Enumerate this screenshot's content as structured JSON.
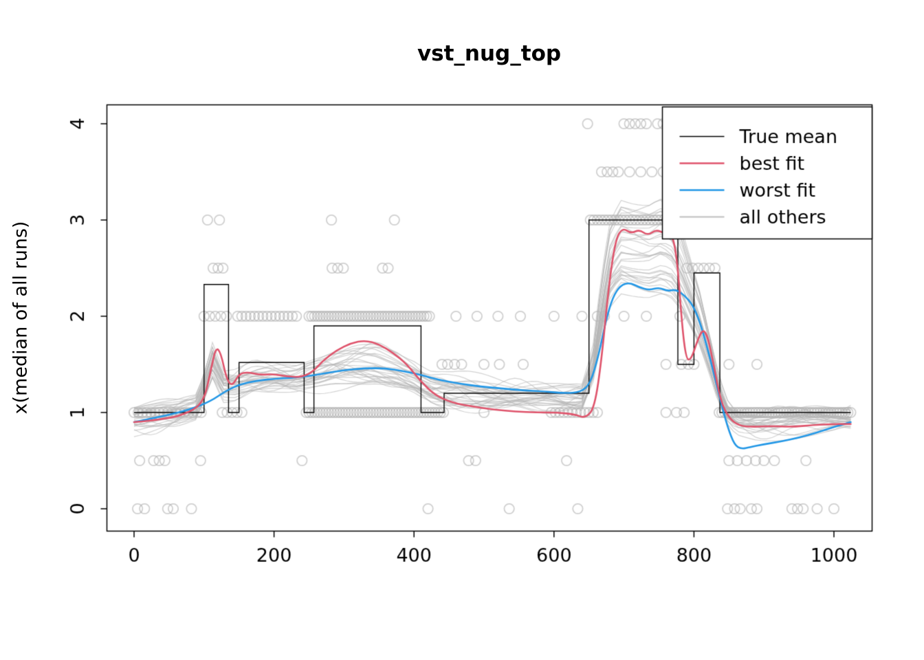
{
  "chart_data": {
    "type": "line",
    "title": "vst_nug_top",
    "xlabel": "",
    "ylabel": "x(median of all runs)",
    "xlim": [
      -40,
      1060
    ],
    "ylim": [
      -0.23,
      4.2
    ],
    "x_ticks": [
      0,
      200,
      400,
      600,
      800,
      1000
    ],
    "y_ticks": [
      0,
      1,
      2,
      3,
      4
    ],
    "grid": false,
    "colors": {
      "true_mean": "#000000",
      "best_fit": "#DF536B",
      "worst_fit": "#2297E6",
      "others": "#BEBEBE",
      "points": "#BEBEBE"
    },
    "legend": {
      "position": "top-right",
      "entries": [
        {
          "label": "True mean",
          "color": "#000000",
          "width": 1.5
        },
        {
          "label": "best fit",
          "color": "#DF536B",
          "width": 2.6
        },
        {
          "label": "worst fit",
          "color": "#2297E6",
          "width": 2.6
        },
        {
          "label": "all others",
          "color": "#BEBEBE",
          "width": 2.0
        }
      ]
    },
    "true_mean_steps": [
      [
        0,
        100,
        1
      ],
      [
        100,
        135,
        2.33
      ],
      [
        135,
        150,
        1
      ],
      [
        150,
        243,
        1.52
      ],
      [
        243,
        257,
        1
      ],
      [
        257,
        410,
        1.9
      ],
      [
        410,
        443,
        1
      ],
      [
        443,
        650,
        1.2
      ],
      [
        650,
        777,
        3
      ],
      [
        777,
        800,
        1.5
      ],
      [
        800,
        837,
        2.45
      ],
      [
        837,
        1024,
        1
      ]
    ],
    "best_fit": [
      [
        0,
        0.9
      ],
      [
        45,
        0.93
      ],
      [
        80,
        1.0
      ],
      [
        100,
        1.12
      ],
      [
        110,
        1.45
      ],
      [
        117,
        1.68
      ],
      [
        124,
        1.62
      ],
      [
        132,
        1.35
      ],
      [
        140,
        1.27
      ],
      [
        150,
        1.4
      ],
      [
        162,
        1.42
      ],
      [
        180,
        1.39
      ],
      [
        200,
        1.4
      ],
      [
        220,
        1.37
      ],
      [
        240,
        1.37
      ],
      [
        255,
        1.42
      ],
      [
        270,
        1.54
      ],
      [
        290,
        1.65
      ],
      [
        310,
        1.72
      ],
      [
        330,
        1.75
      ],
      [
        350,
        1.71
      ],
      [
        370,
        1.62
      ],
      [
        390,
        1.5
      ],
      [
        410,
        1.32
      ],
      [
        430,
        1.18
      ],
      [
        455,
        1.1
      ],
      [
        485,
        1.06
      ],
      [
        515,
        1.03
      ],
      [
        545,
        1.01
      ],
      [
        575,
        1.0
      ],
      [
        605,
        1.0
      ],
      [
        630,
        0.98
      ],
      [
        645,
        0.94
      ],
      [
        658,
        1.05
      ],
      [
        668,
        1.55
      ],
      [
        678,
        2.3
      ],
      [
        688,
        2.8
      ],
      [
        698,
        2.92
      ],
      [
        710,
        2.86
      ],
      [
        722,
        2.9
      ],
      [
        734,
        2.84
      ],
      [
        746,
        2.9
      ],
      [
        758,
        2.86
      ],
      [
        768,
        2.88
      ],
      [
        776,
        2.6
      ],
      [
        783,
        1.9
      ],
      [
        789,
        1.55
      ],
      [
        796,
        1.55
      ],
      [
        805,
        1.75
      ],
      [
        813,
        1.87
      ],
      [
        820,
        1.78
      ],
      [
        828,
        1.5
      ],
      [
        838,
        1.12
      ],
      [
        850,
        0.94
      ],
      [
        865,
        0.86
      ],
      [
        885,
        0.85
      ],
      [
        910,
        0.86
      ],
      [
        940,
        0.85
      ],
      [
        970,
        0.87
      ],
      [
        1000,
        0.88
      ],
      [
        1024,
        0.88
      ]
    ],
    "worst_fit": [
      [
        0,
        0.9
      ],
      [
        40,
        0.96
      ],
      [
        80,
        1.03
      ],
      [
        110,
        1.12
      ],
      [
        130,
        1.22
      ],
      [
        150,
        1.29
      ],
      [
        175,
        1.33
      ],
      [
        200,
        1.35
      ],
      [
        225,
        1.36
      ],
      [
        250,
        1.38
      ],
      [
        275,
        1.41
      ],
      [
        300,
        1.44
      ],
      [
        330,
        1.46
      ],
      [
        360,
        1.46
      ],
      [
        385,
        1.43
      ],
      [
        410,
        1.39
      ],
      [
        435,
        1.34
      ],
      [
        465,
        1.3
      ],
      [
        495,
        1.27
      ],
      [
        525,
        1.25
      ],
      [
        555,
        1.23
      ],
      [
        585,
        1.22
      ],
      [
        615,
        1.2
      ],
      [
        638,
        1.21
      ],
      [
        652,
        1.3
      ],
      [
        664,
        1.6
      ],
      [
        674,
        1.95
      ],
      [
        684,
        2.2
      ],
      [
        695,
        2.32
      ],
      [
        708,
        2.35
      ],
      [
        722,
        2.3
      ],
      [
        736,
        2.27
      ],
      [
        750,
        2.3
      ],
      [
        762,
        2.26
      ],
      [
        774,
        2.28
      ],
      [
        786,
        2.22
      ],
      [
        798,
        2.12
      ],
      [
        808,
        1.95
      ],
      [
        818,
        1.7
      ],
      [
        828,
        1.42
      ],
      [
        838,
        1.12
      ],
      [
        848,
        0.85
      ],
      [
        858,
        0.66
      ],
      [
        868,
        0.62
      ],
      [
        880,
        0.64
      ],
      [
        900,
        0.67
      ],
      [
        925,
        0.7
      ],
      [
        950,
        0.74
      ],
      [
        975,
        0.79
      ],
      [
        1000,
        0.85
      ],
      [
        1024,
        0.9
      ]
    ],
    "others": {
      "count": 30,
      "seed": 9,
      "jitter": 0.14,
      "base": [
        [
          0,
          0.95
        ],
        [
          60,
          0.98
        ],
        [
          90,
          1.05
        ],
        [
          112,
          1.55
        ],
        [
          128,
          1.3
        ],
        [
          145,
          1.3
        ],
        [
          170,
          1.35
        ],
        [
          200,
          1.36
        ],
        [
          230,
          1.35
        ],
        [
          255,
          1.4
        ],
        [
          285,
          1.47
        ],
        [
          315,
          1.5
        ],
        [
          345,
          1.5
        ],
        [
          375,
          1.45
        ],
        [
          400,
          1.38
        ],
        [
          425,
          1.27
        ],
        [
          455,
          1.22
        ],
        [
          490,
          1.2
        ],
        [
          530,
          1.18
        ],
        [
          570,
          1.17
        ],
        [
          610,
          1.16
        ],
        [
          640,
          1.15
        ],
        [
          655,
          1.45
        ],
        [
          668,
          2.1
        ],
        [
          680,
          2.55
        ],
        [
          695,
          2.75
        ],
        [
          715,
          2.72
        ],
        [
          735,
          2.7
        ],
        [
          755,
          2.75
        ],
        [
          770,
          2.68
        ],
        [
          782,
          2.5
        ],
        [
          795,
          2.25
        ],
        [
          808,
          2.0
        ],
        [
          820,
          1.7
        ],
        [
          832,
          1.35
        ],
        [
          845,
          1.05
        ],
        [
          860,
          0.95
        ],
        [
          890,
          0.93
        ],
        [
          930,
          0.94
        ],
        [
          970,
          0.95
        ],
        [
          1024,
          0.95
        ]
      ]
    },
    "points": [
      {
        "y": 0,
        "xs": [
          5,
          15,
          48,
          56,
          82,
          420,
          536,
          634,
          848,
          858,
          866,
          882,
          890,
          940,
          948,
          956,
          976,
          1000
        ]
      },
      {
        "y": 0.5,
        "xs": [
          8,
          28,
          36,
          44,
          95,
          240,
          478,
          488,
          618,
          850,
          862,
          875,
          888,
          900,
          915,
          960
        ]
      },
      {
        "y": 1,
        "ranges": [
          [
            0,
            100,
            6
          ],
          [
            126,
            154,
            7
          ],
          [
            246,
            444,
            4
          ],
          [
            596,
            666,
            6
          ],
          [
            836,
            1024,
            4
          ]
        ],
        "xs": [
          500,
          760,
          775,
          786
        ]
      },
      {
        "y": 1.5,
        "xs": [
          440,
          448,
          458,
          468,
          500,
          522,
          556,
          760,
          782,
          792,
          800,
          850,
          890
        ]
      },
      {
        "y": 2,
        "ranges": [
          [
            148,
            232,
            6
          ],
          [
            250,
            424,
            4
          ]
        ],
        "xs": [
          100,
          108,
          116,
          124,
          132,
          460,
          490,
          520,
          552,
          600,
          640,
          662,
          672,
          700,
          732,
          780
        ]
      },
      {
        "y": 2.5,
        "xs": [
          113,
          120,
          127,
          283,
          291,
          299,
          355,
          363,
          790,
          798,
          806,
          814,
          822,
          830
        ]
      },
      {
        "y": 3,
        "ranges": [
          [
            652,
            780,
            5
          ]
        ],
        "xs": [
          105,
          122,
          282,
          372
        ]
      },
      {
        "y": 3.5,
        "xs": [
          668,
          676,
          684,
          692,
          708,
          724,
          740,
          756
        ]
      },
      {
        "y": 4,
        "xs": [
          648,
          700,
          708,
          716,
          724,
          732,
          748,
          756
        ]
      }
    ]
  }
}
